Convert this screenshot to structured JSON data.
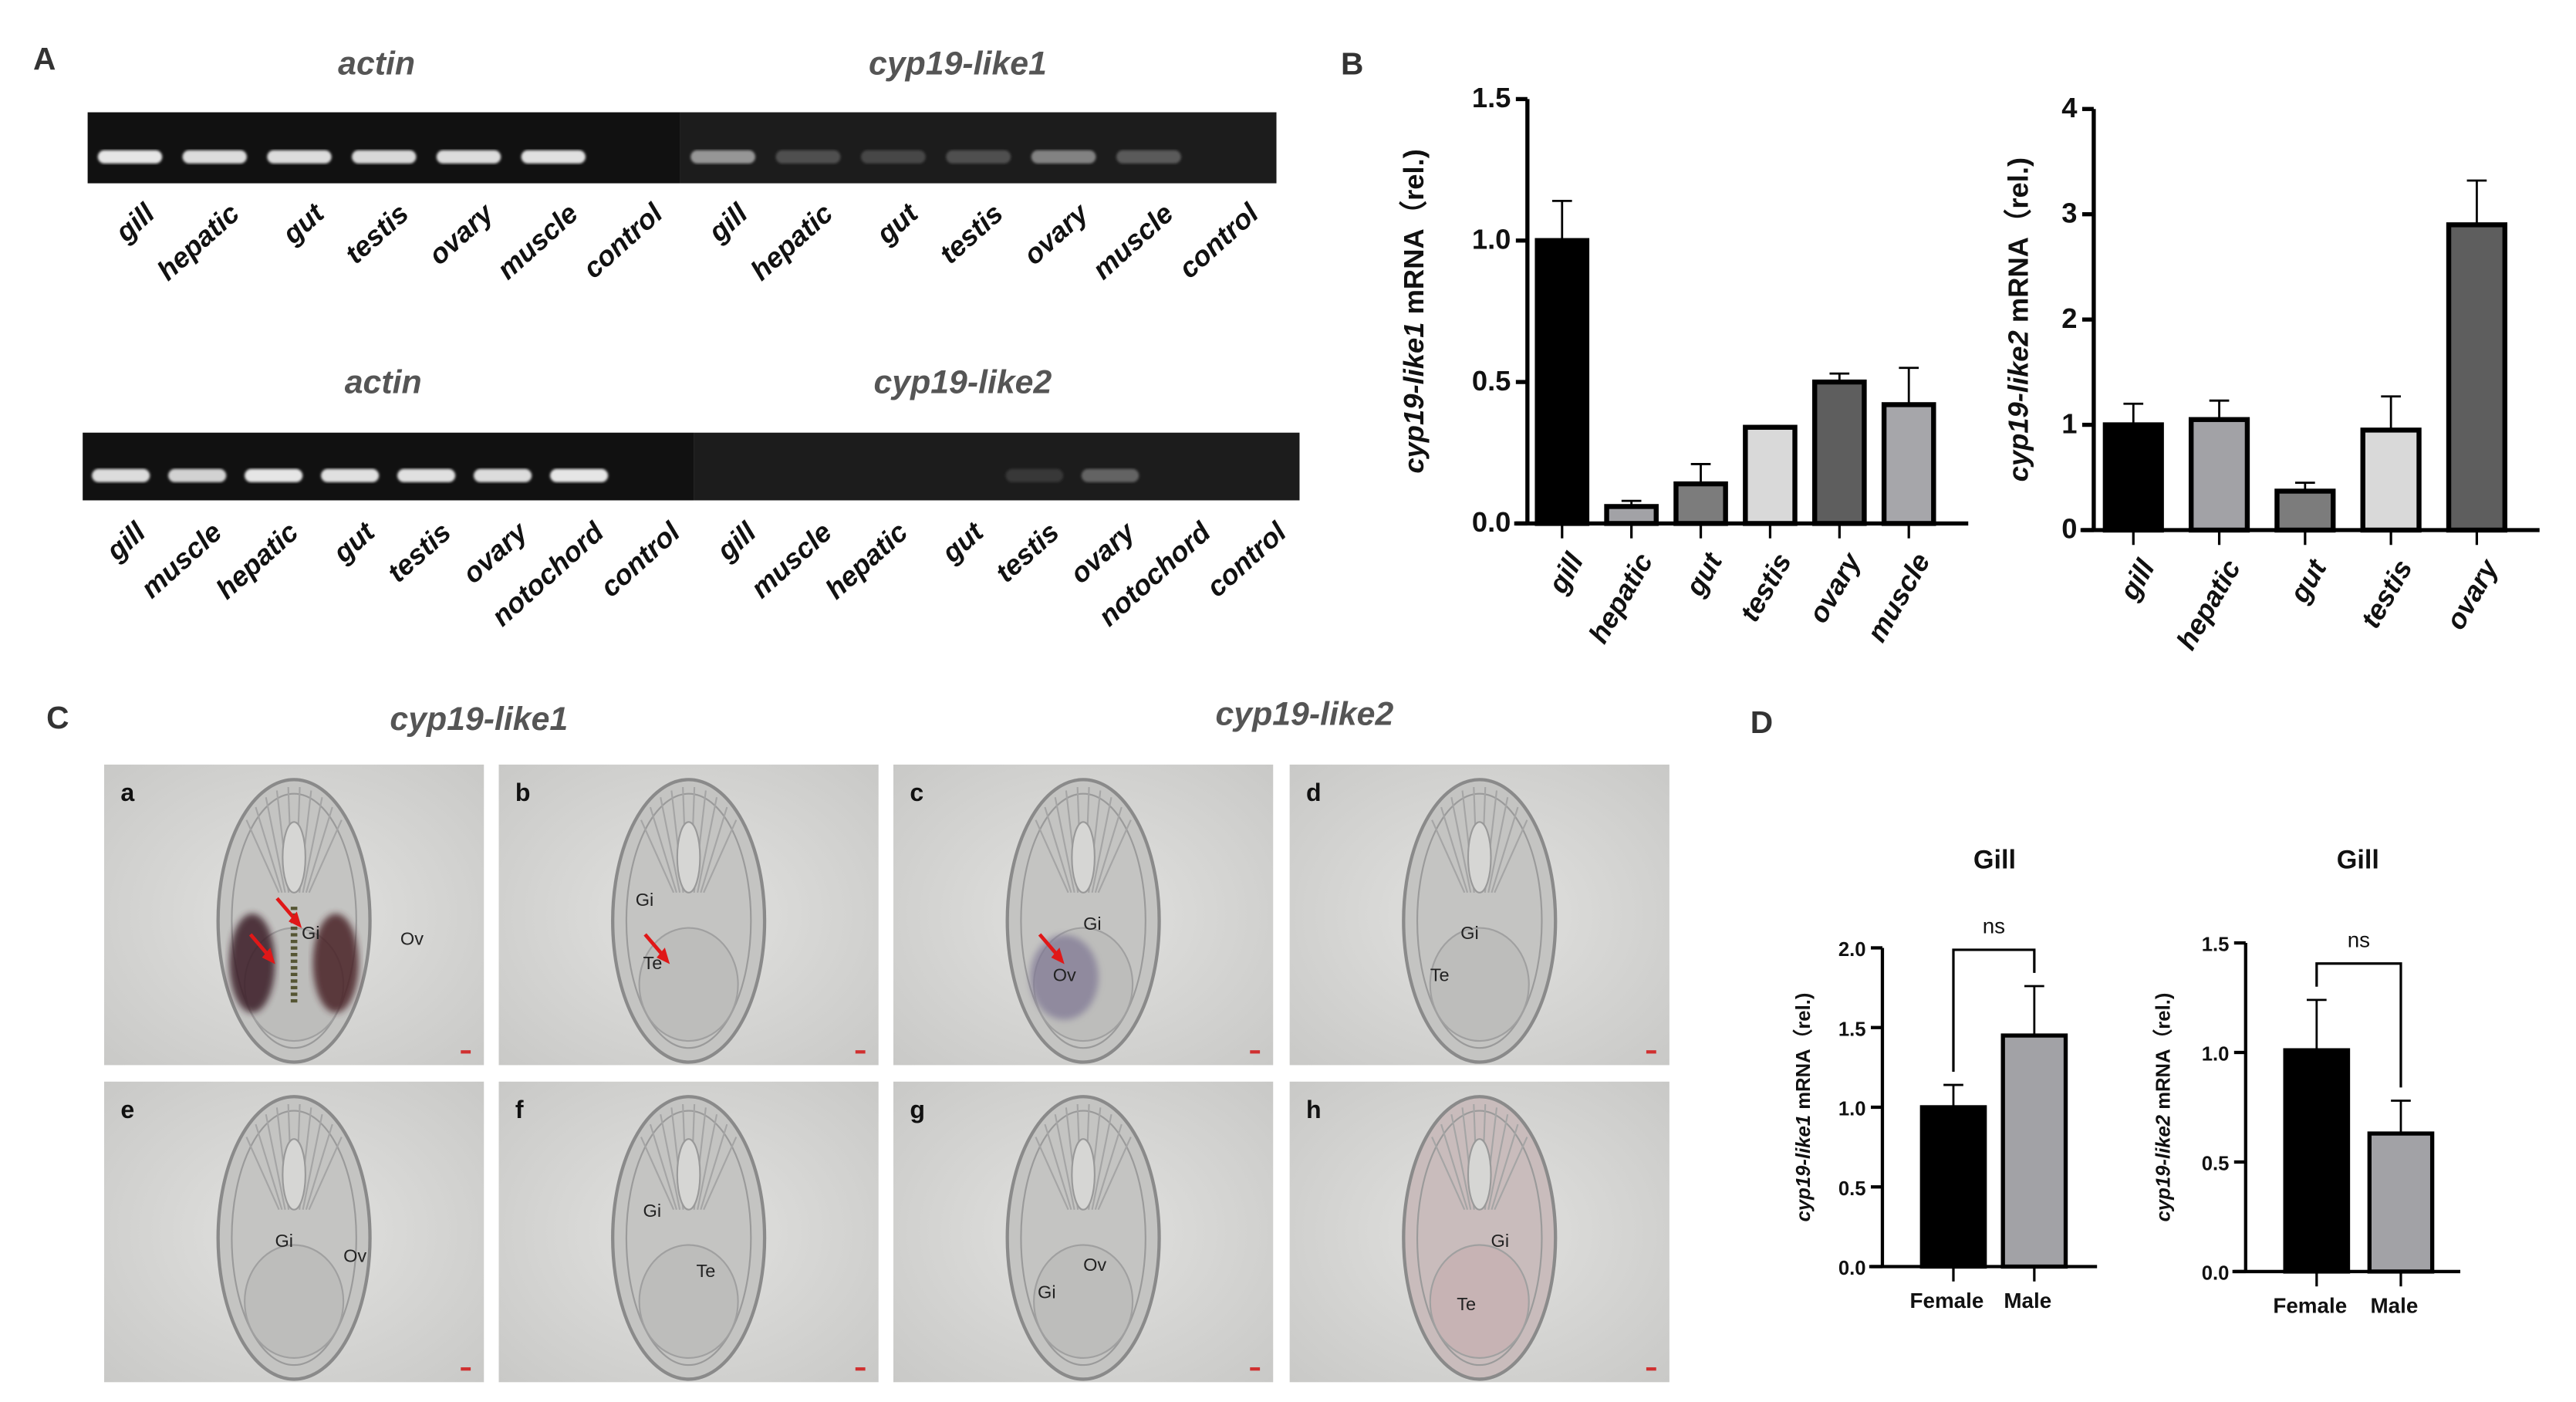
{
  "panels": {
    "A": "A",
    "B": "B",
    "C": "C",
    "D": "D"
  },
  "gels": [
    {
      "left": {
        "title": "actin",
        "lanes": [
          "gill",
          "hepatic",
          "gut",
          "testis",
          "ovary",
          "muscle",
          "control"
        ],
        "band_intensity": [
          0.95,
          0.9,
          0.9,
          0.88,
          0.9,
          0.92,
          0
        ]
      },
      "right": {
        "title": "cyp19-like1",
        "lanes": [
          "gill",
          "hepatic",
          "gut",
          "testis",
          "ovary",
          "muscle",
          "control"
        ],
        "band_intensity": [
          0.55,
          0.2,
          0.15,
          0.2,
          0.45,
          0.25,
          0
        ]
      }
    },
    {
      "left": {
        "title": "actin",
        "lanes": [
          "gill",
          "muscle",
          "hepatic",
          "gut",
          "testis",
          "ovary",
          "notochord",
          "control"
        ],
        "band_intensity": [
          0.9,
          0.85,
          0.95,
          0.92,
          0.92,
          0.9,
          0.95,
          0
        ]
      },
      "right": {
        "title": "cyp19-like2",
        "lanes": [
          "gill",
          "muscle",
          "hepatic",
          "gut",
          "testis",
          "ovary",
          "notochord",
          "control"
        ],
        "band_intensity": [
          0,
          0,
          0,
          0,
          0.08,
          0.3,
          0,
          0
        ]
      }
    }
  ],
  "chart_data": [
    {
      "type": "bar",
      "title": "",
      "xlabel": "",
      "ylabel_italic": "cyp19-like1",
      "ylabel_rest": " mRNA（rel.)",
      "categories": [
        "gill",
        "hepatic",
        "gut",
        "testis",
        "ovary",
        "muscle"
      ],
      "values": [
        1.0,
        0.06,
        0.14,
        0.34,
        0.5,
        0.42
      ],
      "errors": [
        0.14,
        0.02,
        0.07,
        0.005,
        0.03,
        0.13
      ],
      "colors": [
        "#000000",
        "#a2a2a6",
        "#7c7c7c",
        "#d9d9d9",
        "#5e5e5e",
        "#a6a6aa"
      ],
      "ylim": [
        0,
        1.5
      ],
      "yticks": [
        "0.0",
        "0.5",
        "1.0",
        "1.5"
      ],
      "ytick_values": [
        0,
        0.5,
        1.0,
        1.5
      ]
    },
    {
      "type": "bar",
      "title": "",
      "xlabel": "",
      "ylabel_italic": "cyp19-like2",
      "ylabel_rest": " mRNA（rel.)",
      "categories": [
        "gill",
        "hepatic",
        "gut",
        "testis",
        "ovary"
      ],
      "values": [
        1.0,
        1.05,
        0.37,
        0.95,
        2.9
      ],
      "errors": [
        0.2,
        0.18,
        0.08,
        0.32,
        0.42
      ],
      "colors": [
        "#000000",
        "#a2a2a6",
        "#7c7c7c",
        "#d9d9d9",
        "#5e5e5e"
      ],
      "ylim": [
        0,
        4
      ],
      "yticks": [
        "0",
        "1",
        "2",
        "3",
        "4"
      ],
      "ytick_values": [
        0,
        1,
        2,
        3,
        4
      ]
    },
    {
      "type": "bar",
      "title": "Gill",
      "xlabel": "",
      "ylabel_italic": "cyp19-like1",
      "ylabel_rest": " mRNA（rel.)",
      "categories": [
        "Female",
        "Male"
      ],
      "values": [
        1.0,
        1.45
      ],
      "errors": [
        0.14,
        0.31
      ],
      "colors": [
        "#000000",
        "#a2a2a6"
      ],
      "ylim": [
        0,
        2.0
      ],
      "yticks": [
        "0.0",
        "0.5",
        "1.0",
        "1.5",
        "2.0"
      ],
      "ytick_values": [
        0,
        0.5,
        1.0,
        1.5,
        2.0
      ],
      "significance": "ns"
    },
    {
      "type": "bar",
      "title": "Gill",
      "xlabel": "",
      "ylabel_italic": "cyp19-like2",
      "ylabel_rest": " mRNA（rel.)",
      "categories": [
        "Female",
        "Male"
      ],
      "values": [
        1.01,
        0.63
      ],
      "errors": [
        0.23,
        0.15
      ],
      "colors": [
        "#000000",
        "#a2a2a6"
      ],
      "ylim": [
        0,
        1.5
      ],
      "yticks": [
        "0.0",
        "0.5",
        "1.0",
        "1.5"
      ],
      "ytick_values": [
        0,
        0.5,
        1.0,
        1.5
      ],
      "significance": "ns"
    }
  ],
  "histology": {
    "group_titles": [
      "cyp19-like1",
      "cyp19-like2"
    ],
    "sections": [
      {
        "letter": "a",
        "labels": [
          "Gi",
          "Ov"
        ],
        "stain": "strong",
        "arrows": 2
      },
      {
        "letter": "b",
        "labels": [
          "Gi",
          "Te"
        ],
        "stain": "none",
        "arrows": 1
      },
      {
        "letter": "c",
        "labels": [
          "Gi",
          "Ov"
        ],
        "stain": "purple",
        "arrows": 1
      },
      {
        "letter": "d",
        "labels": [
          "Gi",
          "Te"
        ],
        "stain": "none",
        "arrows": 0
      },
      {
        "letter": "e",
        "labels": [
          "Gi",
          "Ov"
        ],
        "stain": "none",
        "arrows": 0
      },
      {
        "letter": "f",
        "labels": [
          "Gi",
          "Te"
        ],
        "stain": "none",
        "arrows": 0
      },
      {
        "letter": "g",
        "labels": [
          "Ov",
          "Gi"
        ],
        "stain": "none",
        "arrows": 0
      },
      {
        "letter": "h",
        "labels": [
          "Gi",
          "Te"
        ],
        "stain": "pink",
        "arrows": 0
      }
    ]
  }
}
